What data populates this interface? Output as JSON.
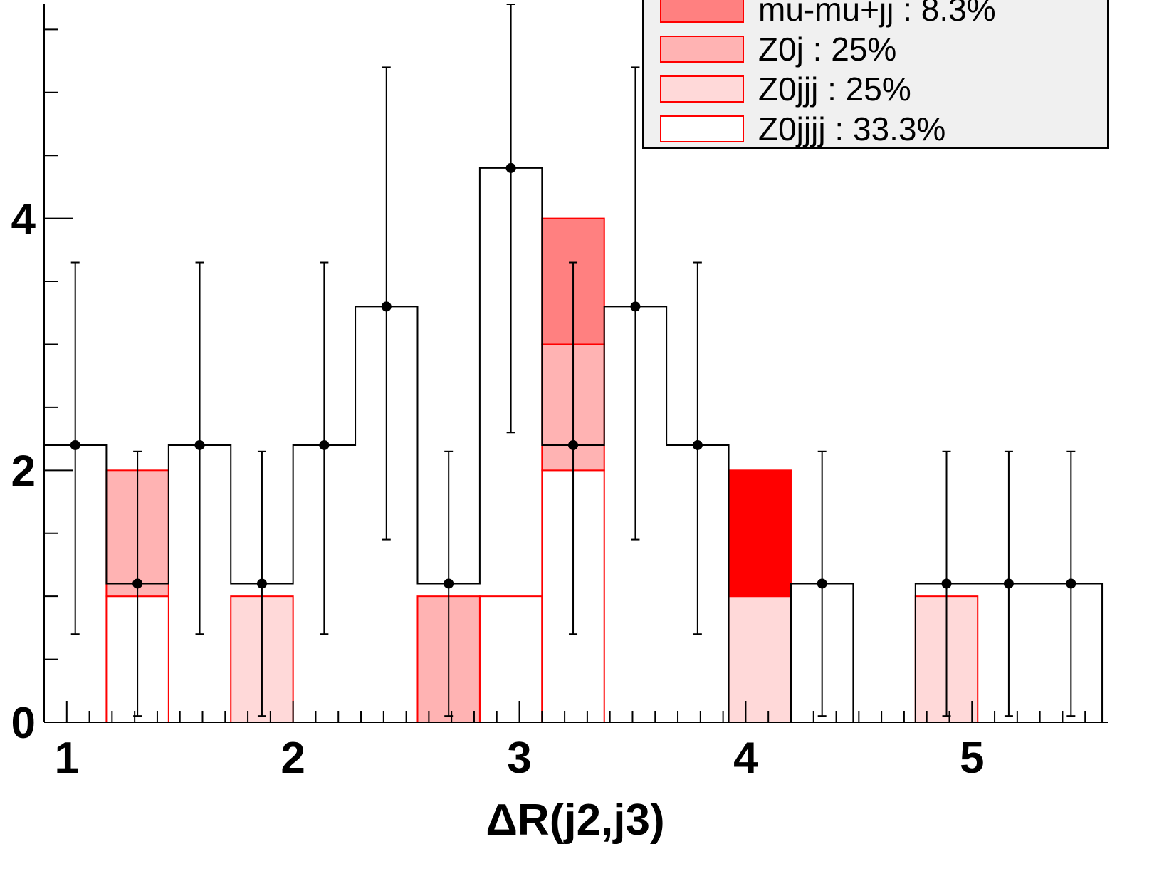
{
  "chart_data": {
    "type": "bar",
    "title": "",
    "xlabel": "ΔR(j2,j3)",
    "ylabel": "",
    "xlim": [
      0.9,
      5.6
    ],
    "ylim": [
      0,
      5.7
    ],
    "x_ticks": [
      "1",
      "2",
      "3",
      "4",
      "5"
    ],
    "y_ticks": [
      "0",
      "2",
      "4"
    ],
    "bin_edges": [
      0.9,
      1.175,
      1.45,
      1.725,
      2.0,
      2.275,
      2.55,
      2.825,
      3.1,
      3.375,
      3.65,
      3.925,
      4.2,
      4.475,
      4.75,
      5.025,
      5.3,
      5.575
    ],
    "stack_order": [
      "Z0jjjj : 33.3%",
      "Z0jjj : 25%",
      "Z0j : 25%",
      "mu-mu+jj : 8.3%",
      "red"
    ],
    "series": [
      {
        "name": "Z0jjjj : 33.3%",
        "values": [
          0,
          1,
          0,
          0,
          0,
          0,
          0,
          1,
          2,
          0,
          0,
          0,
          0,
          0,
          0,
          0,
          0
        ]
      },
      {
        "name": "Z0jjj : 25%",
        "values": [
          0,
          0,
          0,
          1,
          0,
          0,
          0,
          0,
          0,
          0,
          0,
          1,
          0,
          0,
          1,
          0,
          0
        ]
      },
      {
        "name": "Z0j : 25%",
        "values": [
          0,
          1,
          0,
          0,
          0,
          0,
          1,
          0,
          1,
          0,
          0,
          0,
          0,
          0,
          0,
          0,
          0
        ]
      },
      {
        "name": "mu-mu+jj : 8.3%",
        "values": [
          0,
          0,
          0,
          0,
          0,
          0,
          0,
          0,
          1,
          0,
          0,
          0,
          0,
          0,
          0,
          0,
          0
        ]
      },
      {
        "name": "",
        "values": [
          0,
          0,
          0,
          0,
          0,
          0,
          0,
          0,
          0,
          0,
          0,
          1,
          0,
          0,
          0,
          0,
          0
        ]
      }
    ],
    "total_histogram": [
      2.2,
      1.1,
      2.2,
      1.1,
      2.2,
      3.3,
      1.1,
      4.4,
      2.2,
      3.3,
      2.2,
      0,
      1.1,
      0,
      1.1,
      1.1,
      1.1
    ],
    "data_points": [
      {
        "x": 1.0375,
        "y": 2.2,
        "err_low": 0.7,
        "err_high": 3.65
      },
      {
        "x": 1.3125,
        "y": 1.1,
        "err_low": 0.05,
        "err_high": 2.15
      },
      {
        "x": 1.5875,
        "y": 2.2,
        "err_low": 0.7,
        "err_high": 3.65
      },
      {
        "x": 1.8625,
        "y": 1.1,
        "err_low": 0.05,
        "err_high": 2.15
      },
      {
        "x": 2.1375,
        "y": 2.2,
        "err_low": 0.7,
        "err_high": 3.65
      },
      {
        "x": 2.4125,
        "y": 3.3,
        "err_low": 1.45,
        "err_high": 5.2
      },
      {
        "x": 2.6875,
        "y": 1.1,
        "err_low": 0.05,
        "err_high": 2.15
      },
      {
        "x": 2.9625,
        "y": 4.4,
        "err_low": 2.3,
        "err_high": 5.7
      },
      {
        "x": 3.2375,
        "y": 2.2,
        "err_low": 0.7,
        "err_high": 3.65
      },
      {
        "x": 3.5125,
        "y": 3.3,
        "err_low": 1.45,
        "err_high": 5.2
      },
      {
        "x": 3.7875,
        "y": 2.2,
        "err_low": 0.7,
        "err_high": 3.65
      },
      {
        "x": 4.3375,
        "y": 1.1,
        "err_low": 0.05,
        "err_high": 2.15
      },
      {
        "x": 4.8875,
        "y": 1.1,
        "err_low": 0.05,
        "err_high": 2.15
      },
      {
        "x": 5.1625,
        "y": 1.1,
        "err_low": 0.05,
        "err_high": 2.15
      },
      {
        "x": 5.4375,
        "y": 1.1,
        "err_low": 0.05,
        "err_high": 2.15
      }
    ],
    "legend": {
      "placement": "top-right",
      "entries": [
        {
          "label": "mu-mu+jj : 8.3%",
          "color": "#ff8080"
        },
        {
          "label": "Z0j : 25%",
          "color": "#ffb3b3"
        },
        {
          "label": "Z0jjj : 25%",
          "color": "#ffd9d9"
        },
        {
          "label": "Z0jjjj : 33.3%",
          "color": "#ffffff"
        }
      ]
    },
    "colors": {
      "mu-mu+jj : 8.3%": "#ff8080",
      "Z0j : 25%": "#ffb3b3",
      "Z0jjj : 25%": "#ffd9d9",
      "Z0jjjj : 33.3%": "#ffffff",
      "red": "#ff0000",
      "outline": "#ff0000",
      "data": "#000000",
      "legend_bg": "#f0f0f0"
    },
    "grid": false
  }
}
